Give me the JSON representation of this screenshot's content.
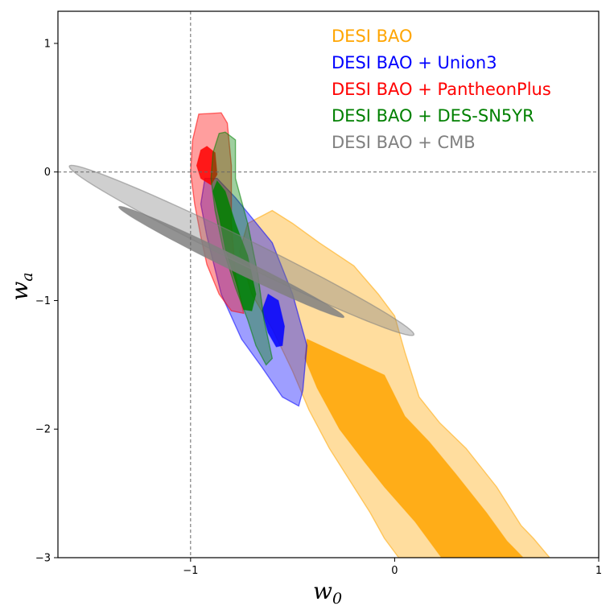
{
  "chart_data": {
    "type": "contour",
    "title": "",
    "xlabel": {
      "main": "w",
      "sub": "0"
    },
    "ylabel": {
      "main": "w",
      "sub": "a"
    },
    "xlim": [
      -1.65,
      1.0
    ],
    "ylim": [
      -3.0,
      1.25
    ],
    "xticks": [
      -1,
      0,
      1
    ],
    "yticks": [
      -3,
      -2,
      -1,
      0,
      1
    ],
    "xtick_labels": [
      "−1",
      "0",
      "1"
    ],
    "ytick_labels": [
      "−3",
      "−2",
      "−1",
      "0",
      "1"
    ],
    "reference_lines": {
      "x": -1,
      "y": 0
    },
    "legend_position": "top-right",
    "colors": {
      "DESI BAO": "#FFA500",
      "DESI BAO + Union3": "#0000FF",
      "DESI BAO + PantheonPlus": "#FF0000",
      "DESI BAO + DES-SN5YR": "#008000",
      "DESI BAO + CMB": "#808080"
    },
    "series": [
      {
        "name": "DESI BAO",
        "color": "#FFA500",
        "contour_68": [
          [
            -0.43,
            -1.3
          ],
          [
            -0.05,
            -1.58
          ],
          [
            0.05,
            -1.9
          ],
          [
            0.17,
            -2.1
          ],
          [
            0.3,
            -2.35
          ],
          [
            0.45,
            -2.65
          ],
          [
            0.55,
            -2.87
          ],
          [
            0.63,
            -3.0
          ],
          [
            0.23,
            -3.0
          ],
          [
            0.1,
            -2.72
          ],
          [
            -0.05,
            -2.45
          ],
          [
            -0.15,
            -2.25
          ],
          [
            -0.27,
            -2.0
          ],
          [
            -0.38,
            -1.68
          ],
          [
            -0.44,
            -1.45
          ]
        ],
        "contour_95": [
          [
            -0.6,
            -0.3
          ],
          [
            -0.5,
            -0.4
          ],
          [
            -0.37,
            -0.55
          ],
          [
            -0.2,
            -0.73
          ],
          [
            -0.08,
            -0.95
          ],
          [
            0.0,
            -1.12
          ],
          [
            0.05,
            -1.4
          ],
          [
            0.12,
            -1.75
          ],
          [
            0.22,
            -1.95
          ],
          [
            0.35,
            -2.15
          ],
          [
            0.5,
            -2.45
          ],
          [
            0.62,
            -2.75
          ],
          [
            0.68,
            -2.85
          ],
          [
            0.76,
            -3.0
          ],
          [
            0.02,
            -3.0
          ],
          [
            -0.05,
            -2.85
          ],
          [
            -0.12,
            -2.65
          ],
          [
            -0.2,
            -2.45
          ],
          [
            -0.32,
            -2.15
          ],
          [
            -0.42,
            -1.85
          ],
          [
            -0.5,
            -1.55
          ],
          [
            -0.6,
            -1.22
          ],
          [
            -0.7,
            -0.95
          ],
          [
            -0.76,
            -0.62
          ],
          [
            -0.72,
            -0.4
          ]
        ]
      },
      {
        "name": "DESI BAO + Union3",
        "color": "#0000FF",
        "contour_68": [
          [
            -0.62,
            -0.95
          ],
          [
            -0.57,
            -1.0
          ],
          [
            -0.54,
            -1.2
          ],
          [
            -0.55,
            -1.35
          ],
          [
            -0.58,
            -1.36
          ],
          [
            -0.62,
            -1.25
          ],
          [
            -0.65,
            -1.08
          ]
        ],
        "contour_95": [
          [
            -0.87,
            -0.05
          ],
          [
            -0.78,
            -0.2
          ],
          [
            -0.6,
            -0.55
          ],
          [
            -0.5,
            -0.95
          ],
          [
            -0.43,
            -1.35
          ],
          [
            -0.45,
            -1.7
          ],
          [
            -0.47,
            -1.82
          ],
          [
            -0.55,
            -1.75
          ],
          [
            -0.65,
            -1.52
          ],
          [
            -0.75,
            -1.3
          ],
          [
            -0.85,
            -0.95
          ],
          [
            -0.92,
            -0.5
          ],
          [
            -0.95,
            -0.25
          ],
          [
            -0.93,
            -0.05
          ]
        ]
      },
      {
        "name": "DESI BAO + PantheonPlus",
        "color": "#FF0000",
        "contour_68": [
          [
            -0.92,
            0.2
          ],
          [
            -0.88,
            0.15
          ],
          [
            -0.87,
            -0.02
          ],
          [
            -0.9,
            -0.1
          ],
          [
            -0.95,
            -0.05
          ],
          [
            -0.97,
            0.05
          ],
          [
            -0.95,
            0.17
          ]
        ],
        "contour_95": [
          [
            -0.96,
            0.45
          ],
          [
            -0.85,
            0.46
          ],
          [
            -0.82,
            0.38
          ],
          [
            -0.8,
            0.05
          ],
          [
            -0.8,
            -0.4
          ],
          [
            -0.78,
            -0.8
          ],
          [
            -0.74,
            -1.1
          ],
          [
            -0.8,
            -1.08
          ],
          [
            -0.86,
            -0.95
          ],
          [
            -0.92,
            -0.72
          ],
          [
            -0.95,
            -0.5
          ],
          [
            -0.98,
            -0.25
          ],
          [
            -1.0,
            0.0
          ],
          [
            -0.99,
            0.25
          ]
        ]
      },
      {
        "name": "DESI BAO + DES-SN5YR",
        "color": "#008000",
        "contour_68": [
          [
            -0.87,
            -0.07
          ],
          [
            -0.83,
            -0.15
          ],
          [
            -0.78,
            -0.4
          ],
          [
            -0.72,
            -0.65
          ],
          [
            -0.68,
            -0.95
          ],
          [
            -0.7,
            -1.08
          ],
          [
            -0.74,
            -1.07
          ],
          [
            -0.78,
            -0.85
          ],
          [
            -0.83,
            -0.6
          ],
          [
            -0.86,
            -0.35
          ],
          [
            -0.89,
            -0.15
          ]
        ],
        "contour_95": [
          [
            -0.83,
            0.31
          ],
          [
            -0.78,
            0.25
          ],
          [
            -0.78,
            -0.05
          ],
          [
            -0.72,
            -0.4
          ],
          [
            -0.67,
            -0.8
          ],
          [
            -0.64,
            -1.15
          ],
          [
            -0.6,
            -1.45
          ],
          [
            -0.63,
            -1.5
          ],
          [
            -0.68,
            -1.35
          ],
          [
            -0.72,
            -1.15
          ],
          [
            -0.78,
            -0.9
          ],
          [
            -0.84,
            -0.6
          ],
          [
            -0.88,
            -0.3
          ],
          [
            -0.9,
            -0.05
          ],
          [
            -0.89,
            0.15
          ],
          [
            -0.86,
            0.3
          ]
        ]
      },
      {
        "name": "DESI BAO + CMB",
        "color": "#808080",
        "ellipse_68": {
          "center": [
            -0.8,
            -0.7
          ],
          "semi_major": 0.7,
          "semi_minor": 0.05,
          "angle_deg": -38
        },
        "ellipse_95": {
          "center": [
            -0.75,
            -0.61
          ],
          "semi_major": 1.07,
          "semi_minor": 0.085,
          "angle_deg": -38
        }
      }
    ]
  }
}
